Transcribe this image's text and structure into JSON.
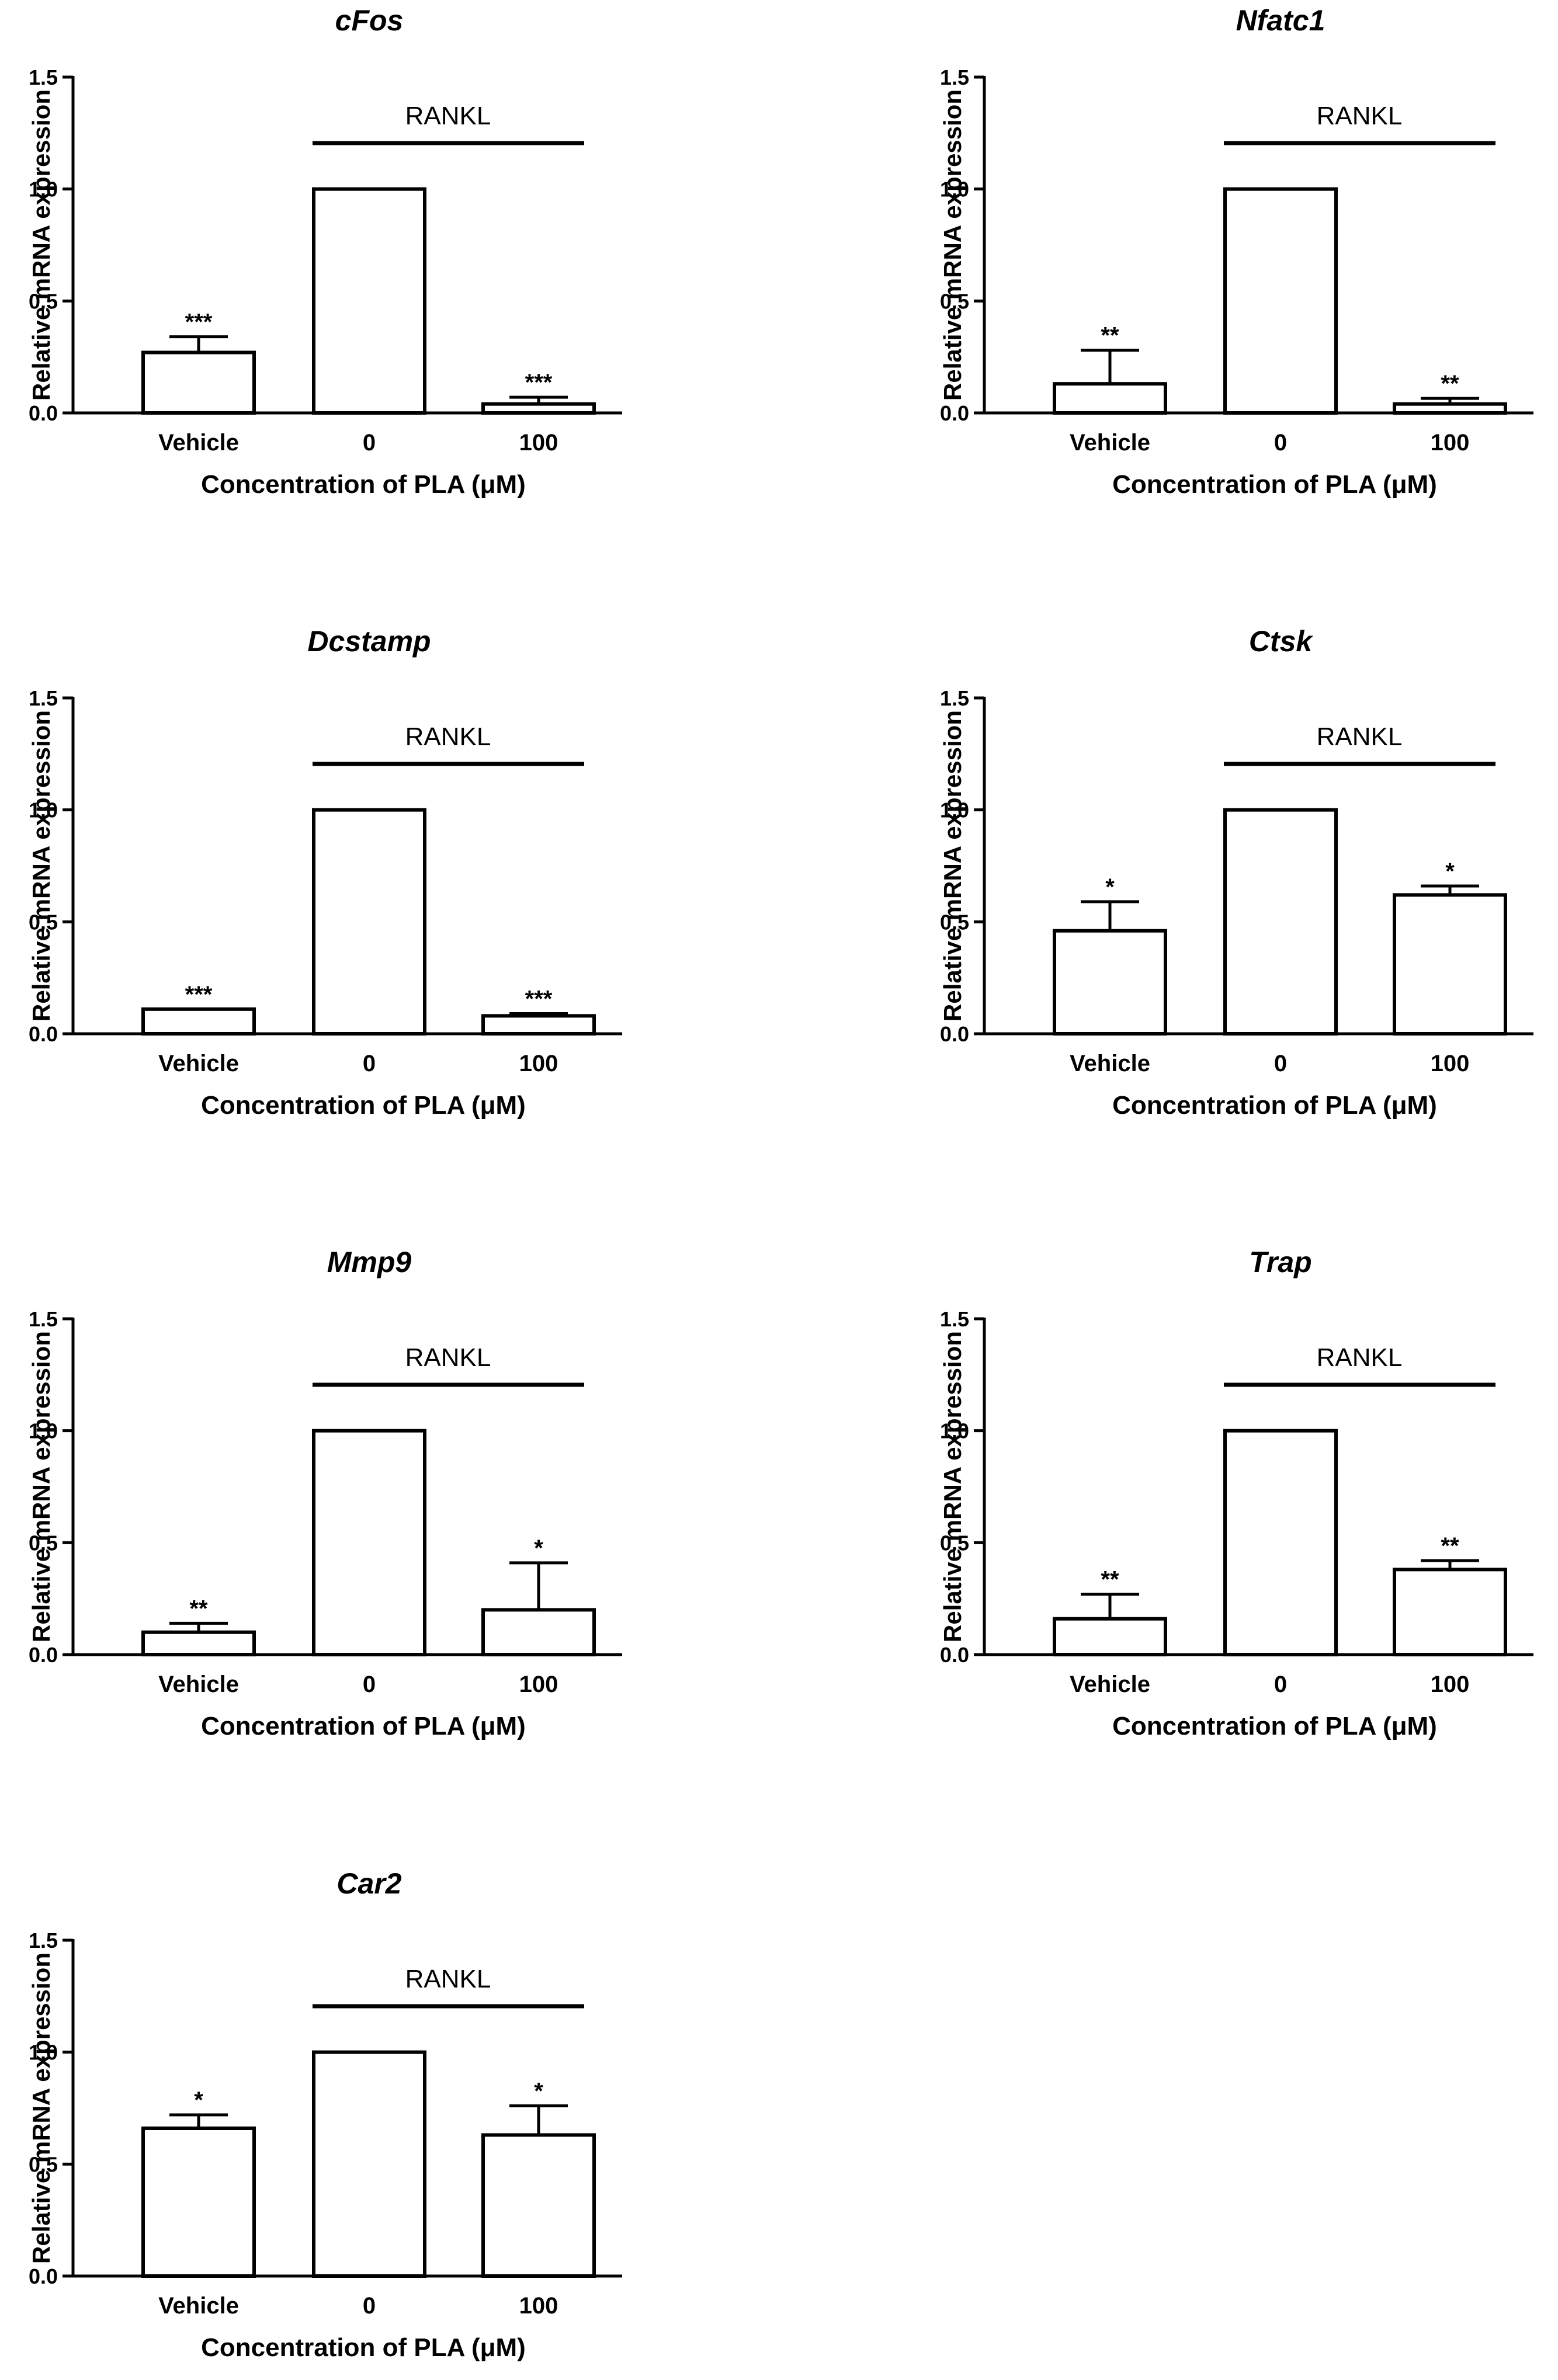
{
  "figure": {
    "background": "#ffffff",
    "ink": "#000000"
  },
  "chart_data": [
    {
      "type": "bar",
      "title": "cFos",
      "categories": [
        "Vehicle",
        "0",
        "100"
      ],
      "values": [
        0.27,
        1.0,
        0.04
      ],
      "errors": [
        0.07,
        0.0,
        0.03
      ],
      "significance": [
        "***",
        "",
        "***"
      ],
      "ylabel": "Relative mRNA expression",
      "xlabel": "Concentration of PLA (μM)",
      "ylim": [
        0,
        1.5
      ],
      "yticks": [
        "0.0",
        "0.5",
        "1.0",
        "1.5"
      ],
      "bracket_label": "RANKL"
    },
    {
      "type": "bar",
      "title": "Nfatc1",
      "categories": [
        "Vehicle",
        "0",
        "100"
      ],
      "values": [
        0.13,
        1.0,
        0.04
      ],
      "errors": [
        0.15,
        0.0,
        0.025
      ],
      "significance": [
        "**",
        "",
        "**"
      ],
      "ylabel": "Relative mRNA expression",
      "xlabel": "Concentration of PLA (μM)",
      "ylim": [
        0,
        1.5
      ],
      "yticks": [
        "0.0",
        "0.5",
        "1.0",
        "1.5"
      ],
      "bracket_label": "RANKL"
    },
    {
      "type": "bar",
      "title": "Dcstamp",
      "categories": [
        "Vehicle",
        "0",
        "100"
      ],
      "values": [
        0.11,
        1.0,
        0.08
      ],
      "errors": [
        0.0,
        0.0,
        0.01
      ],
      "significance": [
        "***",
        "",
        "***"
      ],
      "ylabel": "Relative mRNA expression",
      "xlabel": "Concentration of PLA (μM)",
      "ylim": [
        0,
        1.5
      ],
      "yticks": [
        "0.0",
        "0.5",
        "1.0",
        "1.5"
      ],
      "bracket_label": "RANKL"
    },
    {
      "type": "bar",
      "title": "Ctsk",
      "categories": [
        "Vehicle",
        "0",
        "100"
      ],
      "values": [
        0.46,
        1.0,
        0.62
      ],
      "errors": [
        0.13,
        0.0,
        0.04
      ],
      "significance": [
        "*",
        "",
        "*"
      ],
      "ylabel": "Relative mRNA expression",
      "xlabel": "Concentration of PLA (μM)",
      "ylim": [
        0,
        1.5
      ],
      "yticks": [
        "0.0",
        "0.5",
        "1.0",
        "1.5"
      ],
      "bracket_label": "RANKL"
    },
    {
      "type": "bar",
      "title": "Mmp9",
      "categories": [
        "Vehicle",
        "0",
        "100"
      ],
      "values": [
        0.1,
        1.0,
        0.2
      ],
      "errors": [
        0.04,
        0.0,
        0.21
      ],
      "significance": [
        "**",
        "",
        "*"
      ],
      "ylabel": "Relative mRNA expression",
      "xlabel": "Concentration of PLA (μM)",
      "ylim": [
        0,
        1.5
      ],
      "yticks": [
        "0.0",
        "0.5",
        "1.0",
        "1.5"
      ],
      "bracket_label": "RANKL"
    },
    {
      "type": "bar",
      "title": "Trap",
      "categories": [
        "Vehicle",
        "0",
        "100"
      ],
      "values": [
        0.16,
        1.0,
        0.38
      ],
      "errors": [
        0.11,
        0.0,
        0.04
      ],
      "significance": [
        "**",
        "",
        "**"
      ],
      "ylabel": "Relative mRNA expression",
      "xlabel": "Concentration of PLA (μM)",
      "ylim": [
        0,
        1.5
      ],
      "yticks": [
        "0.0",
        "0.5",
        "1.0",
        "1.5"
      ],
      "bracket_label": "RANKL"
    },
    {
      "type": "bar",
      "title": "Car2",
      "categories": [
        "Vehicle",
        "0",
        "100"
      ],
      "values": [
        0.66,
        1.0,
        0.63
      ],
      "errors": [
        0.06,
        0.0,
        0.13
      ],
      "significance": [
        "*",
        "",
        "*"
      ],
      "ylabel": "Relative mRNA expression",
      "xlabel": "Concentration of PLA (μM)",
      "ylim": [
        0,
        1.5
      ],
      "yticks": [
        "0.0",
        "0.5",
        "1.0",
        "1.5"
      ],
      "bracket_label": "RANKL"
    }
  ]
}
